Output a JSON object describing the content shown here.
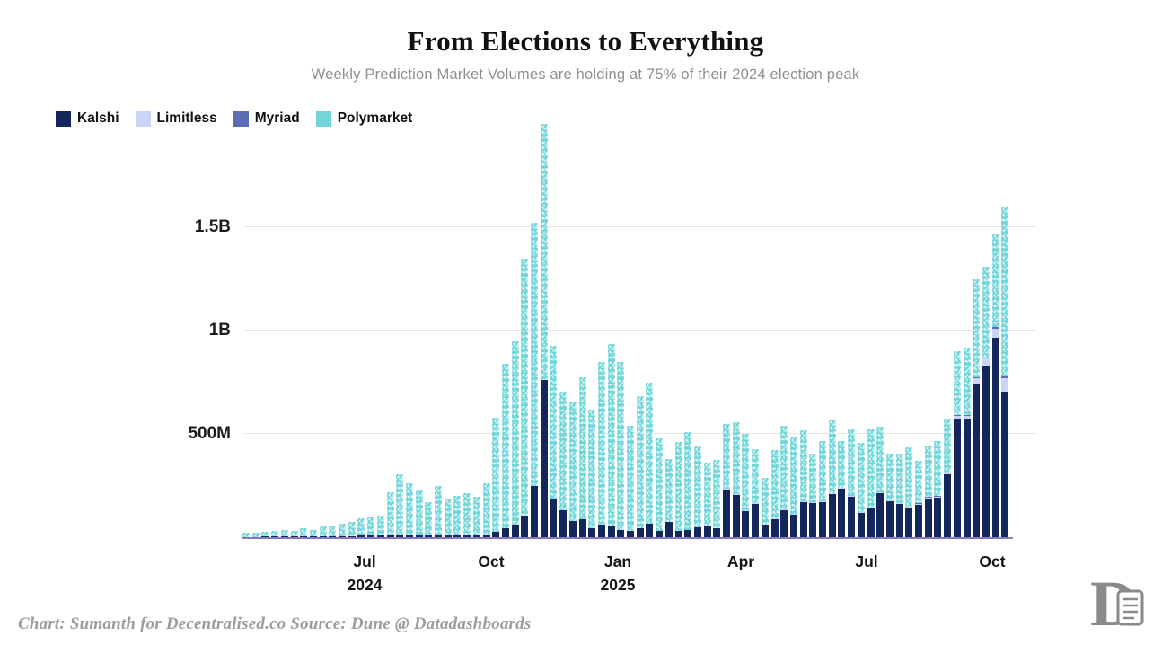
{
  "title": "From Elections to Everything",
  "subtitle": "Weekly Prediction Market Volumes are holding at 75% of their 2024 election peak",
  "attribution": "Chart: Sumanth for Decentralised.co Source: Dune @ Datadashboards",
  "logo_name": "decentralised-d-scroll-logo",
  "colors": {
    "kalshi": "#13275C",
    "limitless": "#C9D4F6",
    "myriad": "#5D6DB5",
    "polymarket": "#72D5D8",
    "gridline": "#E4E4E6",
    "baseline": "#8678C0",
    "title": "#111111",
    "subtitle": "#8F8F8F",
    "axis_label": "#1C1C1C",
    "attribution": "#9C9C9C",
    "logo": "#8A8A8A"
  },
  "legend": [
    {
      "label": "Kalshi",
      "color_key": "kalshi"
    },
    {
      "label": "Limitless",
      "color_key": "limitless"
    },
    {
      "label": "Myriad",
      "color_key": "myriad"
    },
    {
      "label": "Polymarket",
      "color_key": "polymarket"
    }
  ],
  "chart_data": {
    "type": "bar",
    "stacked": true,
    "granularity": "weekly",
    "unit": "weekly volume, millions USD",
    "ylim": [
      0,
      2050
    ],
    "grid": "horizontal",
    "legend_position": "top-left",
    "y_ticks": [
      {
        "label": "500M",
        "value": 500
      },
      {
        "label": "1B",
        "value": 1000
      },
      {
        "label": "1.5B",
        "value": 1500
      }
    ],
    "x_ticks": [
      {
        "label": "Jul",
        "sublabel": "2024",
        "pos": 136
      },
      {
        "label": "Oct",
        "sublabel": "",
        "pos": 277
      },
      {
        "label": "Jan",
        "sublabel": "2025",
        "pos": 418
      },
      {
        "label": "Apr",
        "sublabel": "",
        "pos": 555
      },
      {
        "label": "Jul",
        "sublabel": "",
        "pos": 695
      },
      {
        "label": "Oct",
        "sublabel": "",
        "pos": 835
      }
    ],
    "stack_order": [
      "Kalshi",
      "Limitless",
      "Myriad",
      "Polymarket"
    ],
    "series": [
      {
        "name": "Kalshi",
        "color_key": "kalshi",
        "values": [
          2,
          2,
          3,
          3,
          4,
          3,
          4,
          4,
          5,
          5,
          6,
          6,
          7,
          8,
          8,
          12,
          15,
          12,
          11,
          9,
          12,
          10,
          10,
          11,
          10,
          14,
          28,
          42,
          62,
          105,
          250,
          760,
          183,
          130,
          78,
          87,
          43,
          61,
          52,
          35,
          30,
          43,
          65,
          30,
          74,
          30,
          35,
          48,
          52,
          43,
          230,
          204,
          126,
          161,
          61,
          87,
          130,
          109,
          170,
          165,
          170,
          209,
          235,
          196,
          117,
          139,
          213,
          174,
          161,
          143,
          157,
          187,
          191,
          304,
          574,
          574,
          739,
          830,
          965,
          704
        ]
      },
      {
        "name": "Limitless",
        "color_key": "limitless",
        "values": [
          0,
          0,
          0,
          0,
          0,
          0,
          0,
          0,
          0,
          0,
          0,
          0,
          0,
          0,
          0,
          0,
          0,
          0,
          0,
          0,
          0,
          0,
          0,
          0,
          0,
          0,
          0,
          0,
          0,
          0,
          0,
          0,
          0,
          0,
          0,
          0,
          0,
          0,
          0,
          0,
          0,
          0,
          0,
          0,
          0,
          0,
          0,
          2,
          2,
          2,
          3,
          3,
          3,
          3,
          2,
          3,
          3,
          3,
          4,
          4,
          4,
          5,
          5,
          5,
          4,
          4,
          5,
          5,
          5,
          5,
          5,
          6,
          6,
          8,
          15,
          15,
          30,
          35,
          43,
          65
        ]
      },
      {
        "name": "Myriad",
        "color_key": "myriad",
        "values": [
          0,
          0,
          0,
          0,
          0,
          0,
          0,
          0,
          0,
          0,
          0,
          0,
          0,
          0,
          0,
          0,
          0,
          0,
          0,
          0,
          0,
          0,
          0,
          0,
          0,
          0,
          0,
          0,
          0,
          0,
          0,
          0,
          0,
          0,
          0,
          0,
          0,
          0,
          0,
          0,
          0,
          0,
          0,
          0,
          0,
          0,
          0,
          0,
          0,
          0,
          0,
          0,
          0,
          0,
          0,
          0,
          0,
          0,
          0,
          0,
          0,
          0,
          0,
          0,
          0,
          0,
          0,
          0,
          0,
          2,
          2,
          2,
          2,
          3,
          4,
          4,
          6,
          6,
          8,
          8
        ]
      },
      {
        "name": "Polymarket",
        "color_key": "polymarket",
        "values": [
          18,
          20,
          23,
          27,
          31,
          27,
          39,
          32,
          47,
          53,
          59,
          67,
          83,
          92,
          96,
          205,
          289,
          248,
          215,
          161,
          236,
          177,
          190,
          202,
          186,
          246,
          552,
          798,
          888,
          1245,
          1270,
          1240,
          743,
          574,
          574,
          687,
          574,
          787,
          883,
          813,
          509,
          640,
          683,
          448,
          304,
          431,
          474,
          389,
          307,
          329,
          315,
          350,
          371,
          262,
          224,
          332,
          406,
          371,
          344,
          235,
          291,
          356,
          225,
          321,
          336,
          379,
          317,
          225,
          238,
          285,
          206,
          248,
          266,
          259,
          307,
          325,
          475,
          439,
          454,
          823
        ]
      }
    ]
  }
}
